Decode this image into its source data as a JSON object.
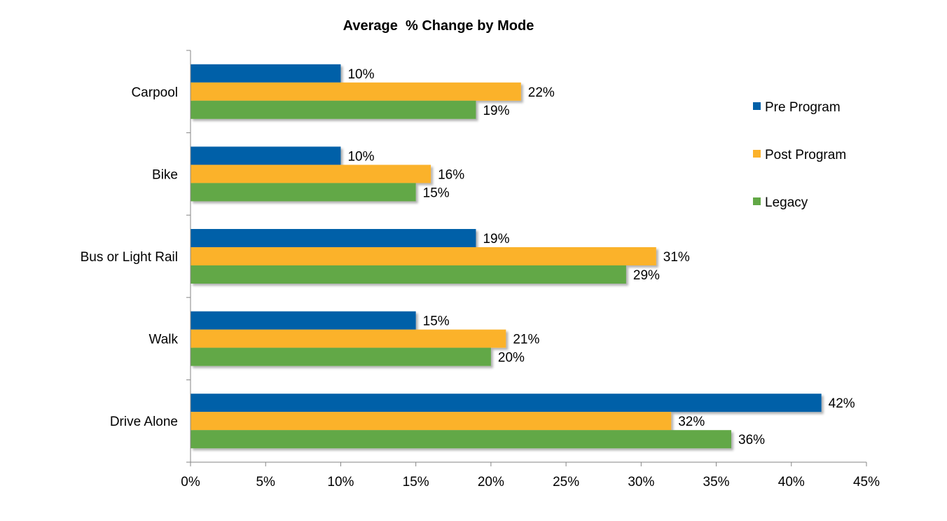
{
  "chart_data": {
    "type": "bar",
    "orientation": "horizontal",
    "title": "Average  % Change by Mode",
    "xlabel": "",
    "ylabel": "",
    "categories": [
      "Carpool",
      "Bike",
      "Bus or Light Rail",
      "Walk",
      "Drive Alone"
    ],
    "series": [
      {
        "name": "Pre Program",
        "color": "#0060A8",
        "values": [
          10,
          10,
          19,
          15,
          42
        ]
      },
      {
        "name": "Post Program",
        "color": "#FBB22B",
        "values": [
          22,
          16,
          31,
          21,
          32
        ]
      },
      {
        "name": "Legacy",
        "color": "#62A846",
        "values": [
          19,
          15,
          29,
          20,
          36
        ]
      }
    ],
    "xlim": [
      0,
      45
    ],
    "x_ticks": [
      "0%",
      "5%",
      "10%",
      "15%",
      "20%",
      "25%",
      "30%",
      "35%",
      "40%",
      "45%"
    ],
    "value_suffix": "%",
    "grid": false,
    "legend_position": "right"
  }
}
